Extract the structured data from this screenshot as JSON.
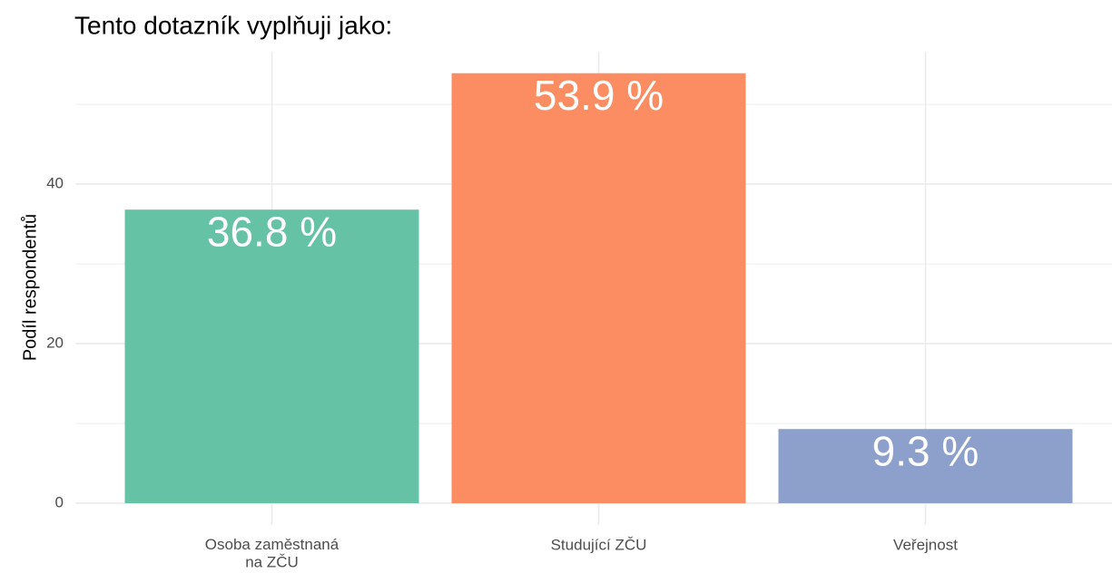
{
  "chart_data": {
    "type": "bar",
    "title": "Tento dotazník vyplňuji jako:",
    "y_label": "Podíl respondentů",
    "categories": [
      "Osoba zaměstnaná\nna ZČU",
      "Studující ZČU",
      "Veřejnost"
    ],
    "values": [
      36.8,
      53.9,
      9.3
    ],
    "value_labels": [
      "36.8 %",
      "53.9 %",
      "9.3 %"
    ],
    "colors": [
      "#66c2a5",
      "#fc8d62",
      "#8da0cb"
    ],
    "ylim": [
      -2.7,
      56.6
    ],
    "yticks": [
      0,
      20,
      40
    ],
    "minor_yticks": [
      10,
      30,
      50
    ],
    "grid": true
  }
}
